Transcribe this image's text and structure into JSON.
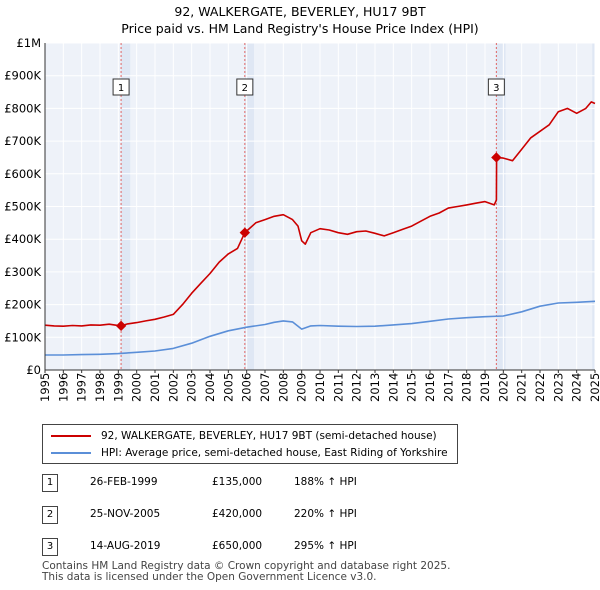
{
  "title_line1": "92, WALKERGATE, BEVERLEY, HU17 9BT",
  "title_line2": "Price paid vs. HM Land Registry's House Price Index (HPI)",
  "chart_data": {
    "type": "line",
    "title": "Price paid vs. HM Land Registry's House Price Index (HPI)",
    "xlabel": "",
    "ylabel": "",
    "xlim": [
      1995,
      2025
    ],
    "ylim": [
      0,
      1000000
    ],
    "x_ticks": [
      "1995",
      "1996",
      "1997",
      "1998",
      "1999",
      "2000",
      "2001",
      "2002",
      "2003",
      "2004",
      "2005",
      "2006",
      "2007",
      "2008",
      "2009",
      "2010",
      "2011",
      "2012",
      "2013",
      "2014",
      "2015",
      "2016",
      "2017",
      "2018",
      "2019",
      "2020",
      "2021",
      "2022",
      "2023",
      "2024",
      "2025"
    ],
    "y_ticks": [
      {
        "value": 0,
        "label": "£0"
      },
      {
        "value": 100000,
        "label": "£100K"
      },
      {
        "value": 200000,
        "label": "£200K"
      },
      {
        "value": 300000,
        "label": "£300K"
      },
      {
        "value": 400000,
        "label": "£400K"
      },
      {
        "value": 500000,
        "label": "£500K"
      },
      {
        "value": 600000,
        "label": "£600K"
      },
      {
        "value": 700000,
        "label": "£700K"
      },
      {
        "value": 800000,
        "label": "£800K"
      },
      {
        "value": 900000,
        "label": "£900K"
      },
      {
        "value": 1000000,
        "label": "£1M"
      }
    ],
    "grid": true,
    "series": [
      {
        "name": "92, WALKERGATE, BEVERLEY, HU17 9BT (semi-detached house)",
        "color": "#cc0000",
        "x": [
          1995.0,
          1995.5,
          1996.0,
          1996.5,
          1997.0,
          1997.5,
          1998.0,
          1998.5,
          1999.15,
          1999.5,
          2000.0,
          2000.5,
          2001.0,
          2001.5,
          2002.0,
          2002.5,
          2003.0,
          2003.5,
          2004.0,
          2004.5,
          2005.0,
          2005.5,
          2005.9,
          2006.0,
          2006.5,
          2007.0,
          2007.5,
          2008.0,
          2008.5,
          2008.8,
          2009.0,
          2009.2,
          2009.5,
          2010.0,
          2010.5,
          2011.0,
          2011.5,
          2012.0,
          2012.5,
          2013.0,
          2013.5,
          2014.0,
          2014.5,
          2015.0,
          2015.5,
          2016.0,
          2016.5,
          2017.0,
          2017.5,
          2018.0,
          2018.5,
          2019.0,
          2019.5,
          2019.62,
          2019.63,
          2020.0,
          2020.5,
          2021.0,
          2021.5,
          2022.0,
          2022.5,
          2023.0,
          2023.5,
          2024.0,
          2024.5,
          2024.8,
          2025.0
        ],
        "values": [
          137000,
          135000,
          134000,
          136000,
          135000,
          138000,
          137000,
          140000,
          135000,
          141000,
          145000,
          150000,
          155000,
          162000,
          170000,
          200000,
          235000,
          265000,
          295000,
          330000,
          355000,
          372000,
          420000,
          425000,
          450000,
          460000,
          470000,
          475000,
          460000,
          440000,
          395000,
          385000,
          420000,
          432000,
          428000,
          420000,
          415000,
          423000,
          425000,
          418000,
          410000,
          420000,
          430000,
          440000,
          455000,
          470000,
          480000,
          495000,
          500000,
          505000,
          510000,
          515000,
          505000,
          520000,
          650000,
          648000,
          640000,
          675000,
          710000,
          730000,
          750000,
          790000,
          800000,
          785000,
          800000,
          820000,
          815000
        ]
      },
      {
        "name": "HPI: Average price, semi-detached house, East Riding of Yorkshire",
        "color": "#5b8fd8",
        "x": [
          1995.0,
          1996.0,
          1997.0,
          1998.0,
          1999.0,
          2000.0,
          2001.0,
          2002.0,
          2003.0,
          2004.0,
          2005.0,
          2006.0,
          2007.0,
          2007.5,
          2008.0,
          2008.5,
          2009.0,
          2009.5,
          2010.0,
          2011.0,
          2012.0,
          2013.0,
          2014.0,
          2015.0,
          2016.0,
          2017.0,
          2018.0,
          2019.0,
          2020.0,
          2021.0,
          2022.0,
          2023.0,
          2024.0,
          2025.0
        ],
        "values": [
          46000,
          46000,
          47000,
          48000,
          50000,
          54000,
          58000,
          66000,
          82000,
          103000,
          120000,
          131000,
          139000,
          146000,
          150000,
          147000,
          125000,
          135000,
          136000,
          134000,
          133000,
          134000,
          138000,
          142000,
          149000,
          156000,
          160000,
          163000,
          165000,
          178000,
          195000,
          205000,
          207000,
          210000
        ]
      }
    ],
    "sales": [
      {
        "num": "1",
        "x": 1999.15,
        "price": 135000,
        "date": "26-FEB-1999",
        "price_label": "£135,000",
        "hpi": "188% ↑ HPI"
      },
      {
        "num": "2",
        "x": 2005.9,
        "price": 420000,
        "date": "25-NOV-2005",
        "price_label": "£420,000",
        "hpi": "220% ↑ HPI"
      },
      {
        "num": "3",
        "x": 2019.62,
        "price": 650000,
        "date": "14-AUG-2019",
        "price_label": "£650,000",
        "hpi": "295% ↑ HPI"
      }
    ]
  },
  "legend": {
    "property": "92, WALKERGATE, BEVERLEY, HU17 9BT (semi-detached house)",
    "hpi": "HPI: Average price, semi-detached house, East Riding of Yorkshire"
  },
  "colors": {
    "property": "#cc0000",
    "hpi": "#5b8fd8",
    "plot_bg": "#eef2f9",
    "highlight_bg": "#dfe7f4",
    "marker_line": "#e06666"
  },
  "footer": {
    "line1": "Contains HM Land Registry data © Crown copyright and database right 2025.",
    "line2": "This data is licensed under the Open Government Licence v3.0."
  }
}
